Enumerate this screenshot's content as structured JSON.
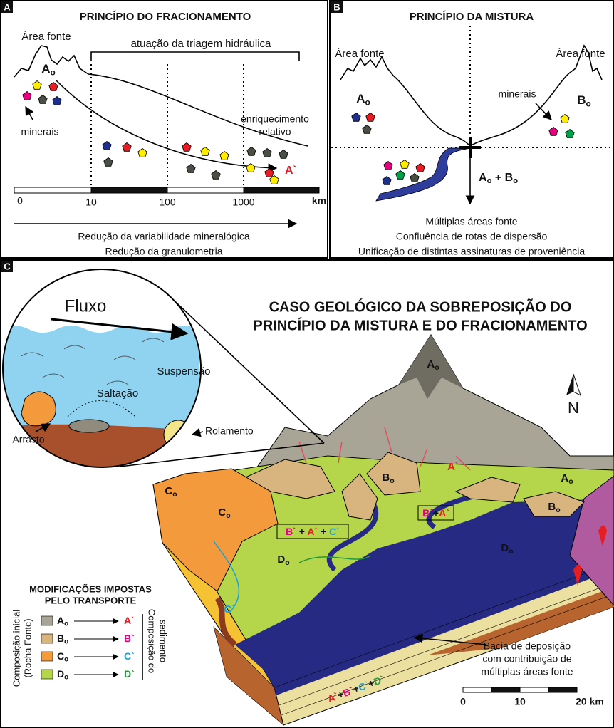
{
  "panel_a": {
    "letter": "A",
    "title": "PRINCÍPIO DO FRACIONAMENTO",
    "source_label": "Área fonte",
    "source": [
      {
        "text": "A",
        "sub": "o"
      }
    ],
    "bracket_label": "atuação da triagem hidráulica",
    "minerals_label": "minerais",
    "enrichment_label": [
      "enriquecimento",
      "relativo"
    ],
    "result": "A`",
    "scale": [
      "0",
      "10",
      "100",
      "1000"
    ],
    "scale_unit": "km",
    "captions": [
      "Redução da variabilidade mineralógica",
      "Redução da granulometria"
    ]
  },
  "panel_b": {
    "letter": "B",
    "title": "PRINCÍPIO DA MISTURA",
    "source_labels": [
      "Área fonte",
      "Área fonte"
    ],
    "source_a": [
      {
        "text": "A",
        "sub": "o"
      }
    ],
    "source_b": [
      {
        "text": "B",
        "sub": "o"
      }
    ],
    "minerals_label": "minerais",
    "mixture": [
      {
        "text": "A",
        "sub": "o"
      },
      {
        "text": " + B",
        "sub": "o"
      }
    ],
    "captions": [
      "Múltiplas áreas fonte",
      "Confluência de rotas de dispersão",
      "Unificação de distintas assinaturas de proveniência"
    ]
  },
  "panel_c": {
    "letter": "C",
    "title": [
      "CASO GEOLÓGICO DA SOBREPOSIÇÃO DO",
      "PRINCÍPIO DA MISTURA E DO FRACIONAMENTO"
    ],
    "inset": {
      "flow": "Fluxo",
      "suspension": "Suspensão",
      "saltation": "Saltação",
      "rolling": "Rolamento",
      "drag": "Arrasto"
    },
    "map_labels": {
      "a_peak": [
        {
          "text": "A",
          "sub": "o"
        }
      ],
      "a_right": [
        {
          "text": "A",
          "sub": "o"
        }
      ],
      "a_result": [
        {
          "text": "A`",
          "color": "#e31e24"
        }
      ],
      "b_center": [
        {
          "text": "B",
          "sub": "o"
        }
      ],
      "b_right": [
        {
          "text": "B",
          "sub": "o"
        }
      ],
      "c_left": [
        {
          "text": "C",
          "sub": "o"
        }
      ],
      "c_mid": [
        {
          "text": "C",
          "sub": "o"
        }
      ],
      "d_left": [
        {
          "text": "D",
          "sub": "o"
        }
      ],
      "d_right": [
        {
          "text": "D",
          "sub": "o"
        }
      ],
      "ba_mix": [
        {
          "text": "B`",
          "color": "#e6007e"
        },
        {
          "text": "+"
        },
        {
          "text": "A`",
          "color": "#e31e24"
        }
      ],
      "bac_mix": [
        {
          "text": "B`",
          "color": "#e6007e"
        },
        {
          "text": " + "
        },
        {
          "text": "A`",
          "color": "#e31e24"
        },
        {
          "text": " + "
        },
        {
          "text": "C`",
          "color": "#1ba1d8"
        }
      ],
      "c_result": [
        {
          "text": "C`",
          "color": "#1ba1d8"
        }
      ]
    },
    "basin_label": [
      "Bacia de deposição",
      "com contribuição de",
      "múltiplas áreas fonte"
    ],
    "basin_mix": [
      {
        "text": "A`",
        "color": "#e31e24"
      },
      {
        "text": "+"
      },
      {
        "text": "B`",
        "color": "#e6007e"
      },
      {
        "text": "+"
      },
      {
        "text": "C`",
        "color": "#1ba1d8"
      },
      {
        "text": "+"
      },
      {
        "text": "D`",
        "color": "#1f9a3a"
      }
    ],
    "north": "N",
    "scale": [
      "0",
      "10",
      "20 km"
    ],
    "legend": {
      "title": [
        "MODIFICAÇÕES IMPOSTAS",
        "PELO TRANSPORTE"
      ],
      "initial_label": [
        "Composição inicial",
        "(Rocha Fonte)"
      ],
      "sediment_label": [
        "Composição do",
        "sedimento"
      ],
      "rows": [
        {
          "source": [
            {
              "text": "A",
              "sub": "o"
            }
          ],
          "result": [
            {
              "text": "A`",
              "color": "#e31e24"
            }
          ],
          "swatch": "#a8a597"
        },
        {
          "source": [
            {
              "text": "B",
              "sub": "o"
            }
          ],
          "result": [
            {
              "text": "B`",
              "color": "#e6007e"
            }
          ],
          "swatch": "#d8b47f"
        },
        {
          "source": [
            {
              "text": "C",
              "sub": "o"
            }
          ],
          "result": [
            {
              "text": "C`",
              "color": "#1ba1d8"
            }
          ],
          "swatch": "#f39a3c"
        },
        {
          "source": [
            {
              "text": "D",
              "sub": "o"
            }
          ],
          "result": [
            {
              "text": "D`",
              "color": "#1f9a3a"
            }
          ],
          "swatch": "#b5d64b"
        }
      ]
    }
  }
}
